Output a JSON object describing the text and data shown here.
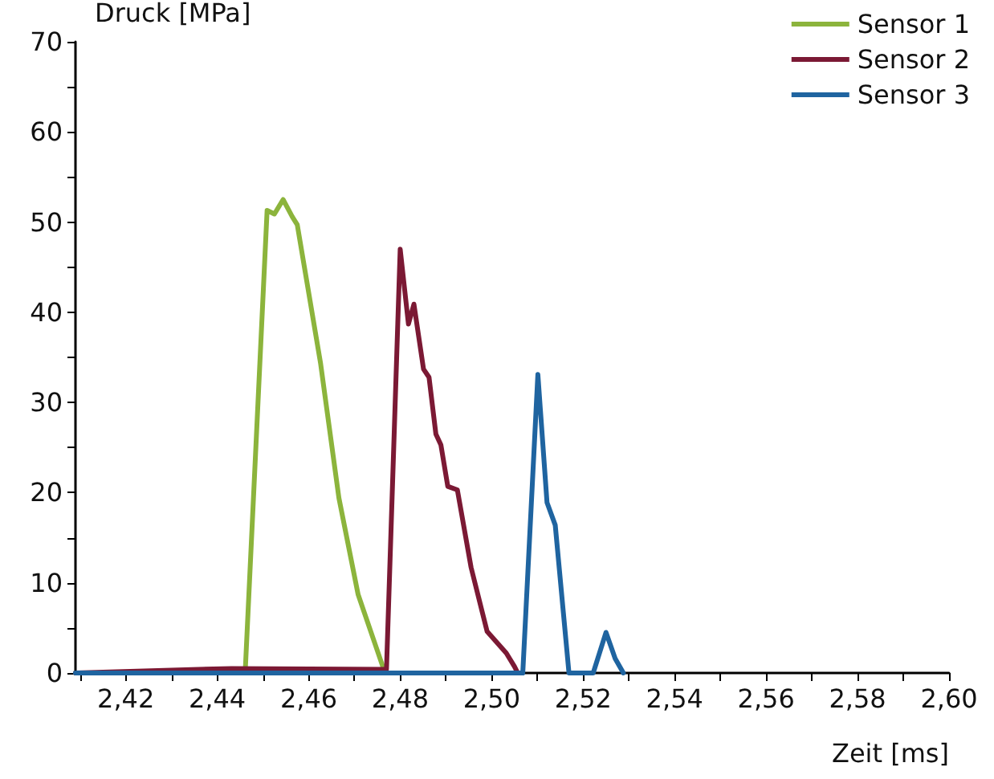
{
  "chart_data": {
    "type": "line",
    "ylabel": "Druck [MPa]",
    "xlabel": "Zeit [ms]",
    "xlim": [
      2.409,
      2.6
    ],
    "xticks": [
      {
        "value": 2.41,
        "label": null
      },
      {
        "value": 2.42,
        "label": "2,42"
      },
      {
        "value": 2.43,
        "label": null
      },
      {
        "value": 2.44,
        "label": "2,44"
      },
      {
        "value": 2.45,
        "label": null
      },
      {
        "value": 2.46,
        "label": "2,46"
      },
      {
        "value": 2.47,
        "label": null
      },
      {
        "value": 2.48,
        "label": "2,48"
      },
      {
        "value": 2.49,
        "label": null
      },
      {
        "value": 2.5,
        "label": "2,50"
      },
      {
        "value": 2.51,
        "label": null
      },
      {
        "value": 2.52,
        "label": "2,52"
      },
      {
        "value": 2.53,
        "label": null
      },
      {
        "value": 2.54,
        "label": "2,54"
      },
      {
        "value": 2.55,
        "label": null
      },
      {
        "value": 2.56,
        "label": "2,56"
      },
      {
        "value": 2.57,
        "label": null
      },
      {
        "value": 2.58,
        "label": "2,58"
      },
      {
        "value": 2.59,
        "label": null
      },
      {
        "value": 2.6,
        "label": "2,60"
      }
    ],
    "ylim": [
      0,
      70
    ],
    "yticks": [
      0,
      {
        "value": 5,
        "label": null
      },
      10,
      {
        "value": 15,
        "label": null
      },
      20,
      {
        "value": 25,
        "label": null
      },
      30,
      {
        "value": 35,
        "label": null
      },
      40,
      {
        "value": 45,
        "label": null
      },
      50,
      {
        "value": 55,
        "label": null
      },
      60,
      {
        "value": 65,
        "label": null
      },
      70
    ],
    "grid": false,
    "legend": "top right",
    "marker": "none",
    "line_style": "solid",
    "series": [
      {
        "name": "Sensor 1",
        "color": "#8cb43c",
        "x": [
          2.409,
          2.4461,
          2.4509,
          2.4525,
          2.4544,
          2.4564,
          2.4575,
          2.4626,
          2.4666,
          2.4708,
          2.4762
        ],
        "values": [
          0,
          0,
          51.3,
          50.9,
          52.5,
          50.6,
          49.7,
          34.3,
          19.4,
          8.7,
          0.7
        ]
      },
      {
        "name": "Sensor 2",
        "color": "#7b1934",
        "x": [
          2.409,
          2.4431,
          2.477,
          2.48,
          2.4818,
          2.483,
          2.4851,
          2.4863,
          2.4878,
          2.4889,
          2.4904,
          2.4925,
          2.4955,
          2.499,
          2.5032,
          2.505,
          2.5057
        ],
        "values": [
          0,
          0.5,
          0.4,
          47,
          38.7,
          40.9,
          33.7,
          32.8,
          26.5,
          25.3,
          20.7,
          20.3,
          11.7,
          4.6,
          2.2,
          0.7,
          0
        ]
      },
      {
        "name": "Sensor 3",
        "color": "#1f64a0",
        "x": [
          2.409,
          2.5068,
          2.5101,
          2.5121,
          2.5139,
          2.5169,
          2.5222,
          2.525,
          2.527,
          2.5288
        ],
        "values": [
          0,
          0,
          33.1,
          18.9,
          16.4,
          0,
          0,
          4.5,
          1.6,
          0
        ]
      }
    ]
  }
}
